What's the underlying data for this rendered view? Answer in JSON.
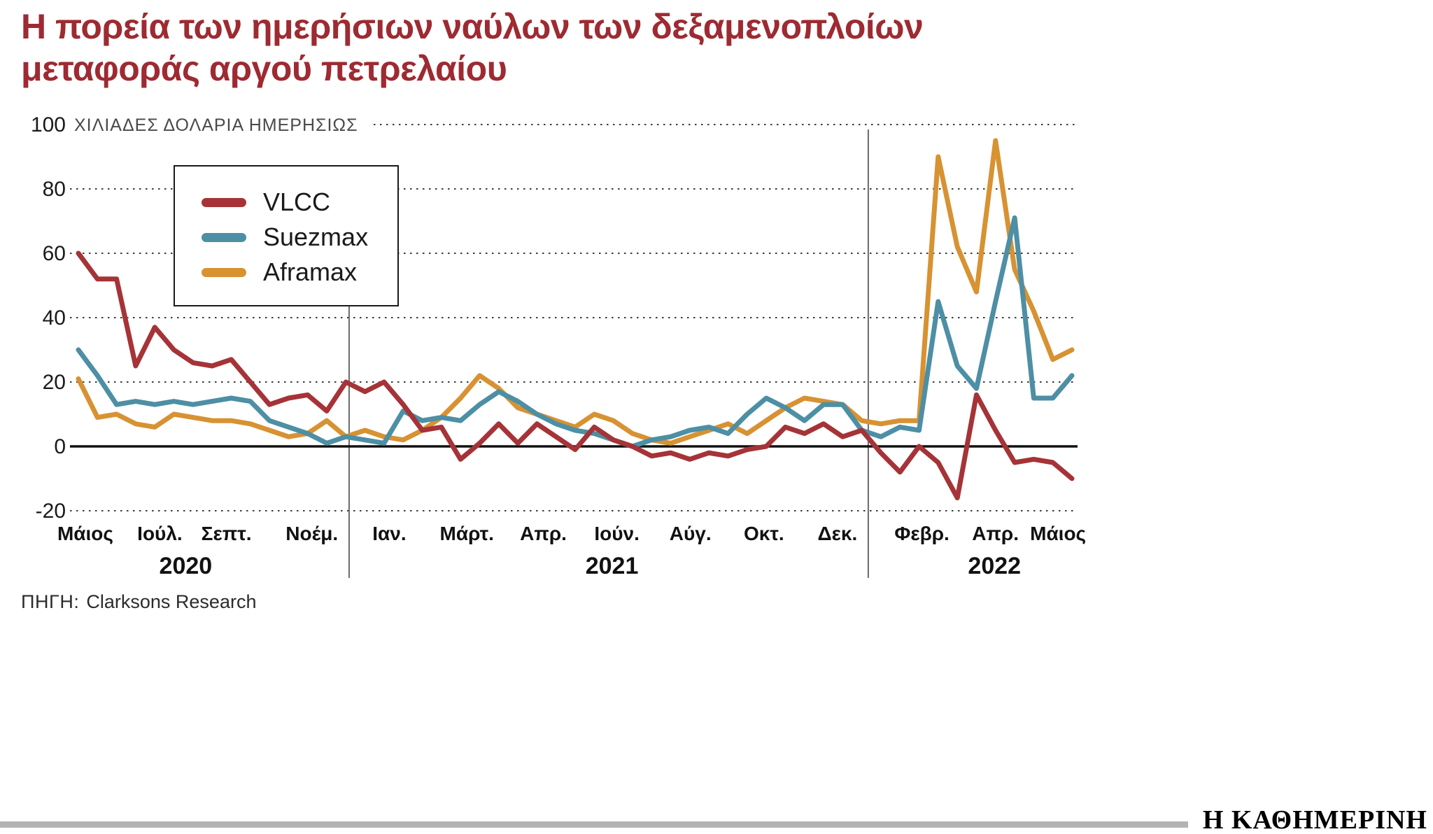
{
  "title": {
    "line1": "Η πορεία των ημερήσιων ναύλων των δεξαμενοπλοίων",
    "line2": "μεταφοράς αργού πετρελαίου"
  },
  "source": {
    "prefix": "ΠΗΓΗ:",
    "text": "Clarksons Research"
  },
  "footer": {
    "logo": "Η ΚΑΘΗΜΕΡΙΝΗ"
  },
  "colors": {
    "title_red": "#9e2a32",
    "grid": "#3c3c3c",
    "zero_line": "#111111",
    "separator": "#6a6a6a",
    "footer_bar": "#b3b3b3"
  },
  "chart_data": {
    "type": "line",
    "title": "Η πορεία των ημερήσιων ναύλων των δεξαμενοπλοίων μεταφοράς αργού πετρελαίου",
    "ylabel": "ΧΙΛΙΑΔΕΣ ΔΟΛΑΡΙΑ ΗΜΕΡΗΣΙΩΣ",
    "ylim": [
      -20,
      100
    ],
    "yticks": [
      100,
      80,
      60,
      40,
      20,
      0,
      -20
    ],
    "grid": "dotted-horizontal",
    "legend_position": "upper-left-box",
    "x_axis": {
      "months": [
        {
          "label": "Μάιος",
          "pos": 0.007
        },
        {
          "label": "Ιούλ.",
          "pos": 0.082
        },
        {
          "label": "Σεπτ.",
          "pos": 0.149
        },
        {
          "label": "Νοέμ.",
          "pos": 0.235
        },
        {
          "label": "Ιαν.",
          "pos": 0.313
        },
        {
          "label": "Μάρτ.",
          "pos": 0.391
        },
        {
          "label": "Απρ.",
          "pos": 0.468
        },
        {
          "label": "Ιούν.",
          "pos": 0.542
        },
        {
          "label": "Αύγ.",
          "pos": 0.616
        },
        {
          "label": "Οκτ.",
          "pos": 0.69
        },
        {
          "label": "Δεκ.",
          "pos": 0.764
        },
        {
          "label": "Φεβρ.",
          "pos": 0.849
        },
        {
          "label": "Απρ.",
          "pos": 0.923
        },
        {
          "label": "Μάιος",
          "pos": 0.986
        }
      ],
      "years": [
        {
          "label": "2020",
          "pos": 0.108
        },
        {
          "label": "2021",
          "pos": 0.537
        },
        {
          "label": "2022",
          "pos": 0.922
        }
      ],
      "year_separators": [
        0.2725,
        0.795
      ]
    },
    "series": [
      {
        "name": "VLCC",
        "color": "#a53337",
        "values": [
          60,
          52,
          52,
          25,
          37,
          30,
          26,
          25,
          27,
          20,
          13,
          15,
          16,
          11,
          20,
          17,
          20,
          13,
          5,
          6,
          -4,
          1,
          7,
          1,
          7,
          3,
          -1,
          6,
          2,
          0,
          -3,
          -2,
          -4,
          -2,
          -3,
          -1,
          0,
          6,
          4,
          7,
          3,
          5,
          -2,
          -8,
          0,
          -5,
          -16,
          16,
          5,
          -5,
          -4,
          -5,
          -10
        ]
      },
      {
        "name": "Suezmax",
        "color": "#4d8fa4",
        "values": [
          30,
          22,
          13,
          14,
          13,
          14,
          13,
          14,
          15,
          14,
          8,
          6,
          4,
          1,
          3,
          2,
          1,
          11,
          8,
          9,
          8,
          13,
          17,
          14,
          10,
          7,
          5,
          4,
          2,
          0,
          2,
          3,
          5,
          6,
          4,
          10,
          15,
          12,
          8,
          13,
          13,
          5,
          3,
          6,
          5,
          45,
          25,
          18,
          45,
          71,
          15,
          15,
          22
        ]
      },
      {
        "name": "Aframax",
        "color": "#d79232",
        "values": [
          21,
          9,
          10,
          7,
          6,
          10,
          9,
          8,
          8,
          7,
          5,
          3,
          4,
          8,
          3,
          5,
          3,
          2,
          5,
          9,
          15,
          22,
          18,
          12,
          10,
          8,
          6,
          10,
          8,
          4,
          2,
          1,
          3,
          5,
          7,
          4,
          8,
          12,
          15,
          14,
          13,
          8,
          7,
          8,
          8,
          90,
          62,
          48,
          95,
          55,
          42,
          27,
          30
        ]
      }
    ]
  }
}
